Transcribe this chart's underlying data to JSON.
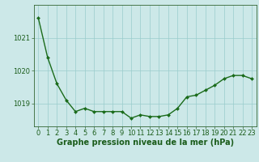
{
  "x": [
    0,
    1,
    2,
    3,
    4,
    5,
    6,
    7,
    8,
    9,
    10,
    11,
    12,
    13,
    14,
    15,
    16,
    17,
    18,
    19,
    20,
    21,
    22,
    23
  ],
  "y": [
    1021.6,
    1020.4,
    1019.6,
    1019.1,
    1018.75,
    1018.85,
    1018.75,
    1018.75,
    1018.75,
    1018.75,
    1018.55,
    1018.65,
    1018.6,
    1018.6,
    1018.65,
    1018.85,
    1019.2,
    1019.25,
    1019.4,
    1019.55,
    1019.75,
    1019.85,
    1019.85,
    1019.75
  ],
  "line_color": "#1a6b1a",
  "marker_color": "#1a6b1a",
  "bg_color": "#cce8e8",
  "grid_color": "#99cccc",
  "axis_color": "#336633",
  "tick_label_color": "#1a5c1a",
  "xlabel": "Graphe pression niveau de la mer (hPa)",
  "ylim": [
    1018.3,
    1022.0
  ],
  "yticks": [
    1019,
    1020,
    1021
  ],
  "xticks": [
    0,
    1,
    2,
    3,
    4,
    5,
    6,
    7,
    8,
    9,
    10,
    11,
    12,
    13,
    14,
    15,
    16,
    17,
    18,
    19,
    20,
    21,
    22,
    23
  ],
  "xlabel_fontsize": 7,
  "tick_fontsize": 6,
  "linewidth": 1.0,
  "markersize": 2.0
}
